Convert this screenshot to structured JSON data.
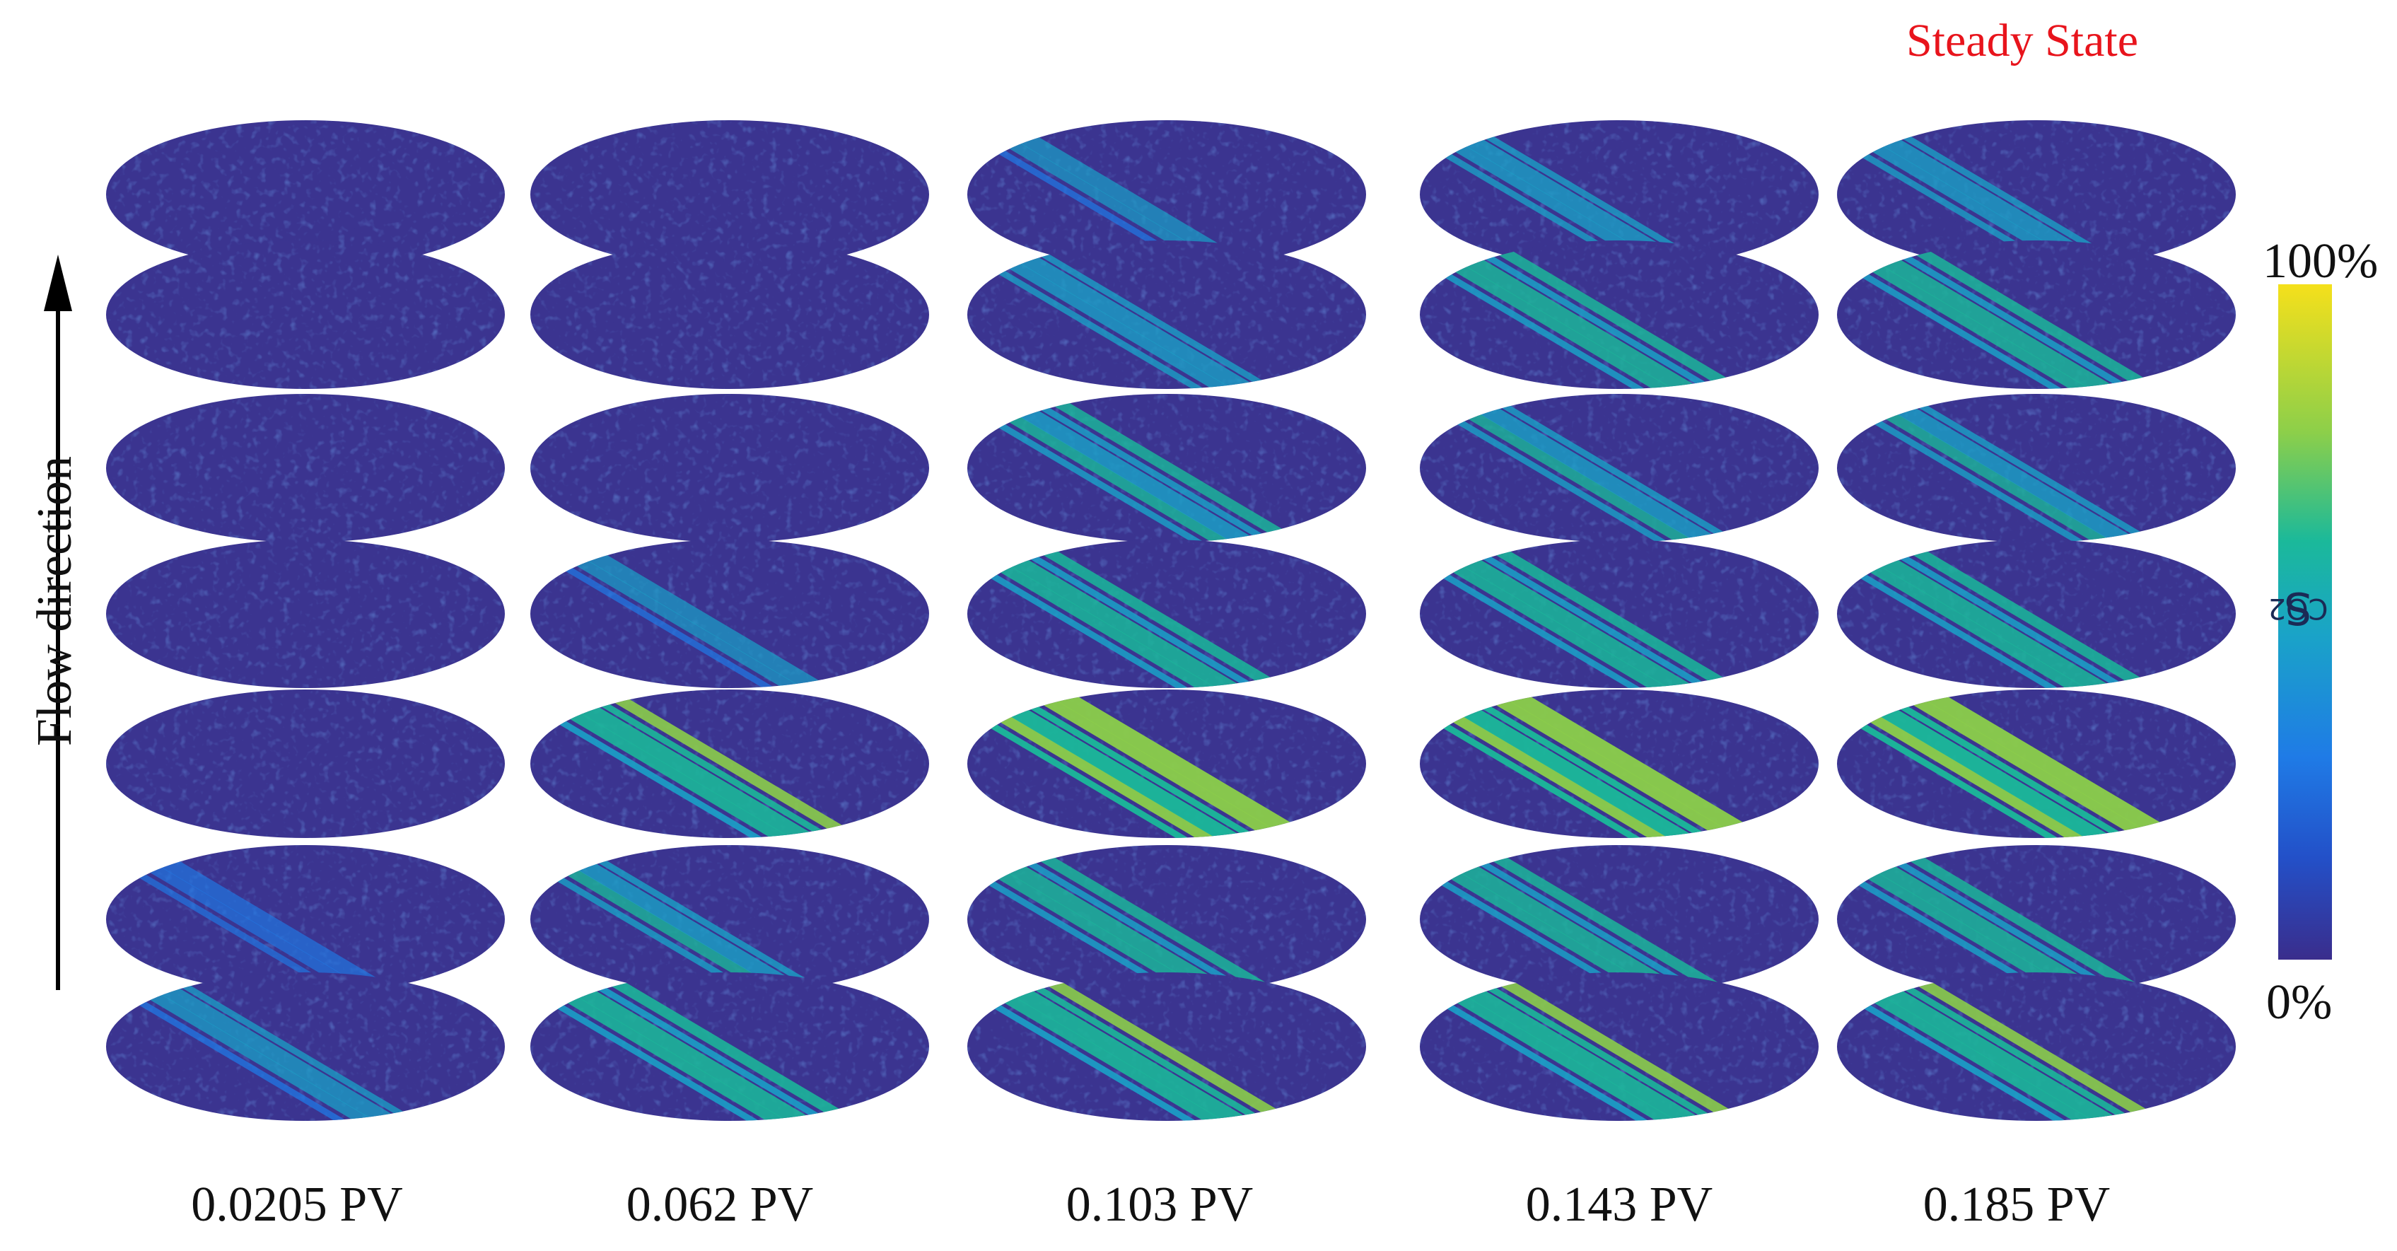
{
  "figure": {
    "top_label": "Steady State",
    "vertical_label": "Flow direction",
    "colorbar": {
      "title_main": "S",
      "title_sub": "CO2",
      "max_label": "100%",
      "min_label": "0%",
      "colors": [
        "#3a2d8c",
        "#1f6de0",
        "#1aa3c8",
        "#1bb99a",
        "#6ccf5a",
        "#f5e01b"
      ]
    },
    "columns": [
      {
        "label": "0.0205 PV"
      },
      {
        "label": "0.062 PV"
      },
      {
        "label": "0.103 PV"
      },
      {
        "label": "0.143 PV"
      },
      {
        "label": "0.185 PV"
      }
    ],
    "background_color": "#3b3490"
  }
}
